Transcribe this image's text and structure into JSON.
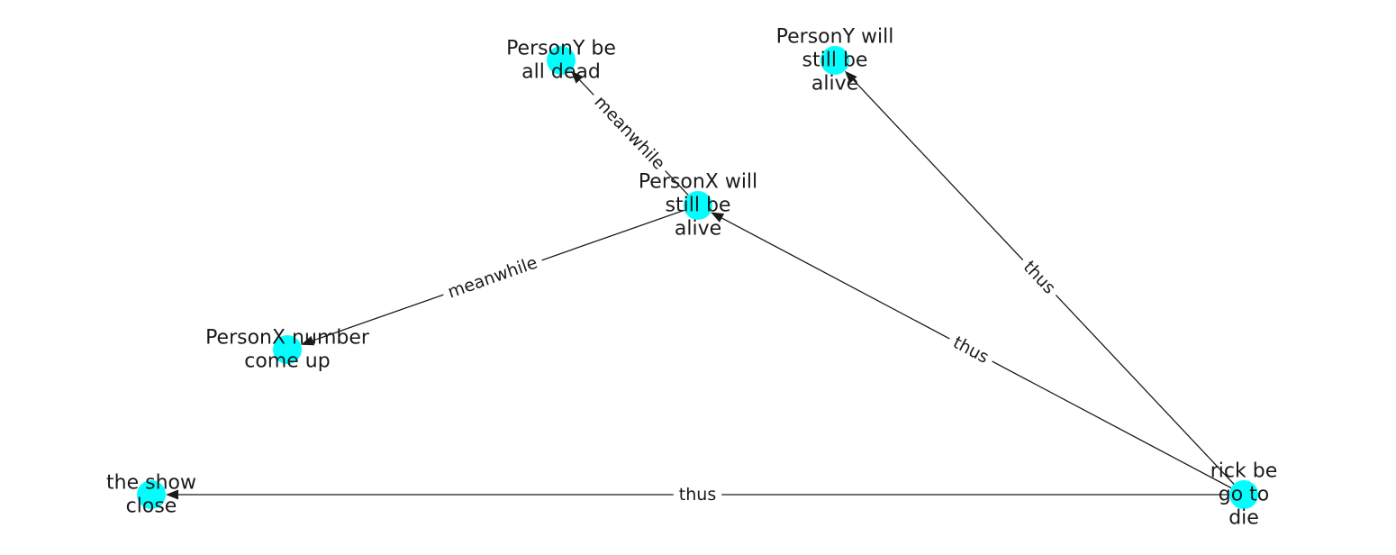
{
  "colors": {
    "node_fill": "#00ffff",
    "edge": "#1a1a1a",
    "label": "#1a1a1a",
    "background": "#ffffff"
  },
  "nodes": [
    {
      "id": "y_dead",
      "lines": [
        "PersonY be",
        "all dead"
      ]
    },
    {
      "id": "y_alive",
      "lines": [
        "PersonY will",
        "still be",
        "alive"
      ]
    },
    {
      "id": "x_alive",
      "lines": [
        "PersonX will",
        "still be",
        "alive"
      ]
    },
    {
      "id": "x_number",
      "lines": [
        "PersonX number",
        "come up"
      ]
    },
    {
      "id": "show",
      "lines": [
        "the show",
        "close"
      ]
    },
    {
      "id": "rick",
      "lines": [
        "rick be",
        "go to",
        "die"
      ]
    }
  ],
  "edges": [
    {
      "source": "x_alive",
      "target": "y_dead",
      "label": "meanwhile"
    },
    {
      "source": "x_alive",
      "target": "x_number",
      "label": "meanwhile"
    },
    {
      "source": "rick",
      "target": "y_alive",
      "label": "thus"
    },
    {
      "source": "rick",
      "target": "x_alive",
      "label": "thus"
    },
    {
      "source": "rick",
      "target": "show",
      "label": "thus"
    }
  ]
}
